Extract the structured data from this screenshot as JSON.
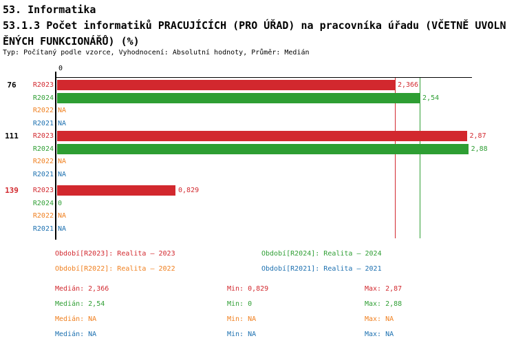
{
  "header": {
    "line1": "53. Informatika",
    "line2": "53.1.3 Počet informatiků PRACUJÍCÍCH (PRO ÚŘAD) na pracovníka úřadu (VČETNĚ UVOLN",
    "line3": "ĚNÝCH FUNKCIONÁŘŮ) (%)",
    "meta": "Typ: Počítaný podle vzorce, Vyhodnocení: Absolutní hodnoty, Průměr: Medián"
  },
  "colors": {
    "r2023": "#d2282e",
    "r2024": "#2e9e33",
    "r2022": "#f08020",
    "r2021": "#1c70b0",
    "axis": "#000000",
    "background": "#ffffff"
  },
  "chart_data": {
    "type": "bar",
    "orientation": "horizontal",
    "axis": {
      "origin_label": "0",
      "x_min": 0,
      "x_max": 2.9,
      "grid": false
    },
    "series_labels": [
      "R2023",
      "R2024",
      "R2022",
      "R2021"
    ],
    "groups": [
      {
        "id": "76",
        "id_color": "#000000",
        "rows": [
          {
            "series": "R2023",
            "key": "r2023",
            "value": 2.366,
            "label": "2,366"
          },
          {
            "series": "R2024",
            "key": "r2024",
            "value": 2.54,
            "label": "2,54"
          },
          {
            "series": "R2022",
            "key": "r2022",
            "value": null,
            "label": "NA"
          },
          {
            "series": "R2021",
            "key": "r2021",
            "value": null,
            "label": "NA"
          }
        ]
      },
      {
        "id": "111",
        "id_color": "#000000",
        "rows": [
          {
            "series": "R2023",
            "key": "r2023",
            "value": 2.87,
            "label": "2,87"
          },
          {
            "series": "R2024",
            "key": "r2024",
            "value": 2.88,
            "label": "2,88"
          },
          {
            "series": "R2022",
            "key": "r2022",
            "value": null,
            "label": "NA"
          },
          {
            "series": "R2021",
            "key": "r2021",
            "value": null,
            "label": "NA"
          }
        ]
      },
      {
        "id": "139",
        "id_color": "#d2282e",
        "rows": [
          {
            "series": "R2023",
            "key": "r2023",
            "value": 0.829,
            "label": "0,829"
          },
          {
            "series": "R2024",
            "key": "r2024",
            "value": 0,
            "label": "0"
          },
          {
            "series": "R2022",
            "key": "r2022",
            "value": null,
            "label": "NA"
          },
          {
            "series": "R2021",
            "key": "r2021",
            "value": null,
            "label": "NA"
          }
        ]
      }
    ],
    "reference_lines": [
      {
        "series": "R2023",
        "key": "r2023",
        "value": 2.366
      },
      {
        "series": "R2024",
        "key": "r2024",
        "value": 2.54
      }
    ]
  },
  "legend": {
    "items": [
      {
        "key": "r2023",
        "label": "Období[R2023]: Realita – 2023"
      },
      {
        "key": "r2024",
        "label": "Období[R2024]: Realita – 2024"
      },
      {
        "key": "r2022",
        "label": "Období[R2022]: Realita – 2022"
      },
      {
        "key": "r2021",
        "label": "Období[R2021]: Realita – 2021"
      }
    ]
  },
  "stats": {
    "rows": [
      {
        "key": "r2023",
        "median": "Medián: 2,366",
        "min": "Min: 0,829",
        "max": "Max: 2,87"
      },
      {
        "key": "r2024",
        "median": "Medián: 2,54",
        "min": "Min: 0",
        "max": "Max: 2,88"
      },
      {
        "key": "r2022",
        "median": "Medián: NA",
        "min": "Min: NA",
        "max": "Max: NA"
      },
      {
        "key": "r2021",
        "median": "Medián: NA",
        "min": "Min: NA",
        "max": "Max: NA"
      }
    ]
  }
}
